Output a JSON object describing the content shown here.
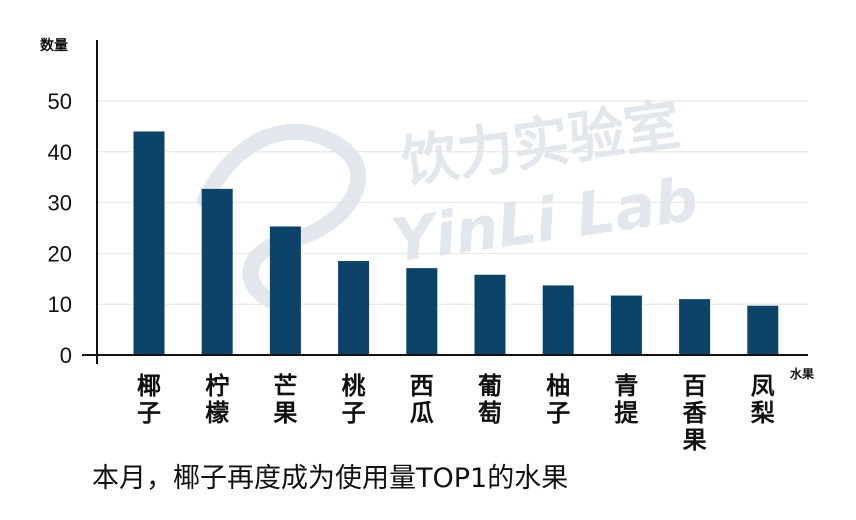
{
  "chart_data": {
    "type": "bar",
    "ylabel": "数量",
    "xlabel": "水果",
    "ylim": [
      0,
      50
    ],
    "yticks": [
      0,
      10,
      20,
      30,
      40,
      50
    ],
    "grid": true,
    "categories": [
      "椰子",
      "柠檬",
      "芒果",
      "桃子",
      "西瓜",
      "葡萄",
      "柚子",
      "青提",
      "百香果",
      "凤梨"
    ],
    "values": [
      44,
      32.7,
      25.3,
      18.5,
      17.1,
      15.8,
      13.7,
      11.7,
      11,
      9.7
    ],
    "bar_color": "#0b4468"
  },
  "caption": "本月，椰子再度成为使用量TOP1的水果",
  "watermark": {
    "cn": "饮力实验室",
    "en": "YinLi Lab"
  }
}
